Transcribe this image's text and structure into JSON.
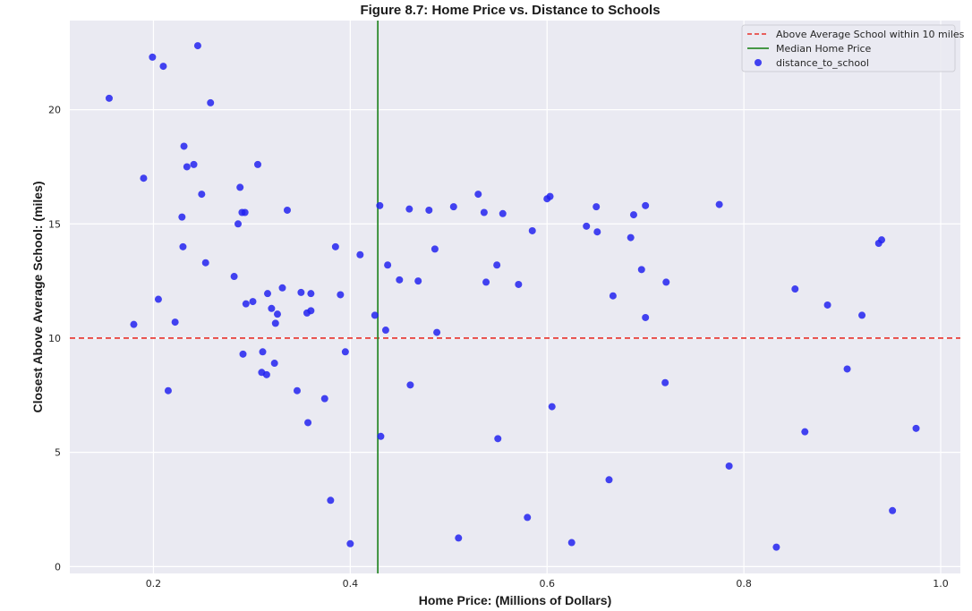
{
  "chart_data": {
    "type": "scatter",
    "title": "Figure 8.7: Home Price vs. Distance to Schools",
    "xlabel": "Home Price: (Millions of Dollars)",
    "ylabel": "Closest Above Average School: (miles)",
    "xlim": [
      0.115,
      1.02
    ],
    "ylim": [
      -0.3,
      23.9
    ],
    "xticks": [
      0.2,
      0.4,
      0.6,
      0.8,
      1.0
    ],
    "xtick_labels": [
      "0.2",
      "0.4",
      "0.6",
      "0.8",
      "1.0"
    ],
    "yticks": [
      0,
      5,
      10,
      15,
      20
    ],
    "ytick_labels": [
      "0",
      "5",
      "10",
      "15",
      "20"
    ],
    "grid": true,
    "background": "#eaeaf2",
    "legend_position": "top-right",
    "reference_lines": [
      {
        "name": "Above Average School within 10 miles",
        "orientation": "horizontal",
        "value": 10,
        "color": "#e8312a",
        "style": "dashed"
      },
      {
        "name": "Median Home Price",
        "orientation": "vertical",
        "value": 0.428,
        "color": "#2e8b2e",
        "style": "solid"
      }
    ],
    "series": [
      {
        "name": "distance_to_school",
        "color": "#2323f0",
        "points": [
          [
            0.155,
            20.5
          ],
          [
            0.18,
            10.6
          ],
          [
            0.19,
            17.0
          ],
          [
            0.199,
            22.3
          ],
          [
            0.205,
            11.7
          ],
          [
            0.21,
            21.9
          ],
          [
            0.215,
            7.7
          ],
          [
            0.222,
            10.7
          ],
          [
            0.229,
            15.3
          ],
          [
            0.23,
            14.0
          ],
          [
            0.231,
            18.4
          ],
          [
            0.234,
            17.5
          ],
          [
            0.241,
            17.6
          ],
          [
            0.245,
            22.8
          ],
          [
            0.249,
            16.3
          ],
          [
            0.253,
            13.3
          ],
          [
            0.258,
            20.3
          ],
          [
            0.282,
            12.7
          ],
          [
            0.286,
            15.0
          ],
          [
            0.288,
            16.6
          ],
          [
            0.29,
            15.5
          ],
          [
            0.291,
            9.3
          ],
          [
            0.293,
            15.5
          ],
          [
            0.294,
            11.5
          ],
          [
            0.301,
            11.6
          ],
          [
            0.306,
            17.6
          ],
          [
            0.31,
            8.5
          ],
          [
            0.311,
            9.4
          ],
          [
            0.315,
            8.4
          ],
          [
            0.316,
            11.95
          ],
          [
            0.32,
            11.3
          ],
          [
            0.323,
            8.9
          ],
          [
            0.324,
            10.65
          ],
          [
            0.326,
            11.05
          ],
          [
            0.331,
            12.2
          ],
          [
            0.336,
            15.6
          ],
          [
            0.346,
            7.7
          ],
          [
            0.35,
            12.0
          ],
          [
            0.356,
            11.1
          ],
          [
            0.357,
            6.3
          ],
          [
            0.36,
            11.95
          ],
          [
            0.36,
            11.2
          ],
          [
            0.374,
            7.35
          ],
          [
            0.38,
            2.9
          ],
          [
            0.385,
            14.0
          ],
          [
            0.39,
            11.9
          ],
          [
            0.395,
            9.4
          ],
          [
            0.4,
            1.0
          ],
          [
            0.41,
            13.65
          ],
          [
            0.425,
            11.0
          ],
          [
            0.43,
            15.8
          ],
          [
            0.431,
            5.7
          ],
          [
            0.436,
            10.35
          ],
          [
            0.438,
            13.2
          ],
          [
            0.45,
            12.55
          ],
          [
            0.46,
            15.65
          ],
          [
            0.461,
            7.95
          ],
          [
            0.469,
            12.5
          ],
          [
            0.48,
            15.6
          ],
          [
            0.486,
            13.9
          ],
          [
            0.488,
            10.25
          ],
          [
            0.505,
            15.75
          ],
          [
            0.51,
            1.25
          ],
          [
            0.53,
            16.3
          ],
          [
            0.536,
            15.5
          ],
          [
            0.538,
            12.45
          ],
          [
            0.549,
            13.2
          ],
          [
            0.55,
            5.6
          ],
          [
            0.555,
            15.45
          ],
          [
            0.571,
            12.35
          ],
          [
            0.58,
            2.15
          ],
          [
            0.585,
            14.7
          ],
          [
            0.6,
            16.1
          ],
          [
            0.603,
            16.2
          ],
          [
            0.605,
            7.0
          ],
          [
            0.625,
            1.05
          ],
          [
            0.64,
            14.9
          ],
          [
            0.65,
            15.75
          ],
          [
            0.651,
            14.65
          ],
          [
            0.663,
            3.8
          ],
          [
            0.667,
            11.85
          ],
          [
            0.685,
            14.4
          ],
          [
            0.688,
            15.4
          ],
          [
            0.696,
            13.0
          ],
          [
            0.7,
            10.9
          ],
          [
            0.7,
            15.8
          ],
          [
            0.72,
            8.05
          ],
          [
            0.721,
            12.45
          ],
          [
            0.775,
            15.85
          ],
          [
            0.785,
            4.4
          ],
          [
            0.833,
            0.85
          ],
          [
            0.852,
            12.15
          ],
          [
            0.862,
            5.9
          ],
          [
            0.885,
            11.45
          ],
          [
            0.905,
            8.65
          ],
          [
            0.92,
            11.0
          ],
          [
            0.937,
            14.15
          ],
          [
            0.94,
            14.3
          ],
          [
            0.951,
            2.45
          ],
          [
            0.975,
            6.05
          ]
        ]
      }
    ]
  }
}
